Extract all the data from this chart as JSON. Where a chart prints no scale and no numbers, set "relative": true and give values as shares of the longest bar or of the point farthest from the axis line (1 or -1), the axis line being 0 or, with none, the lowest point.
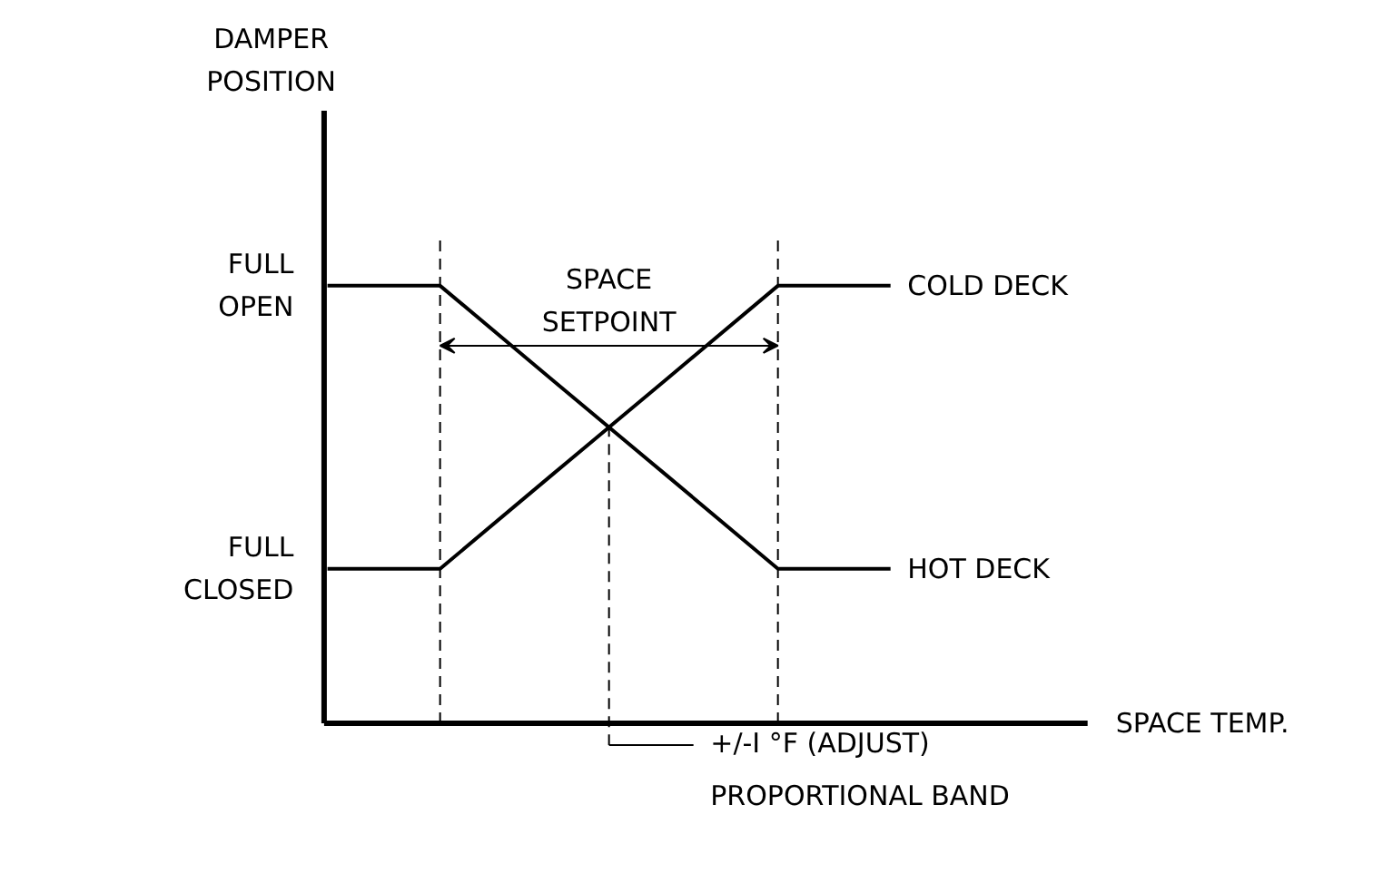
{
  "chart_data": {
    "type": "line",
    "relative": true,
    "categories": [
      null,
      null,
      null,
      null,
      null,
      null
    ],
    "series": [
      {
        "name": "COLD DECK",
        "color": "#000000",
        "values": [
          0.353,
          0.353,
          0.569,
          0.784,
          1,
          1
        ]
      },
      {
        "name": "HOT DECK",
        "color": "#000000",
        "values": [
          1,
          1,
          0.784,
          0.569,
          0.353,
          0.353
        ]
      }
    ],
    "annotations": [
      "FULL\nOPEN",
      "FULL\nCLOSED",
      "SPACE\nSETPOINT",
      "+/-I °F (ADJUST)\nPROPORTIONAL BAND",
      "DAMPER\nPOSITION",
      "SPACE TEMP."
    ],
    "marker": "none",
    "line_style": "solid"
  }
}
